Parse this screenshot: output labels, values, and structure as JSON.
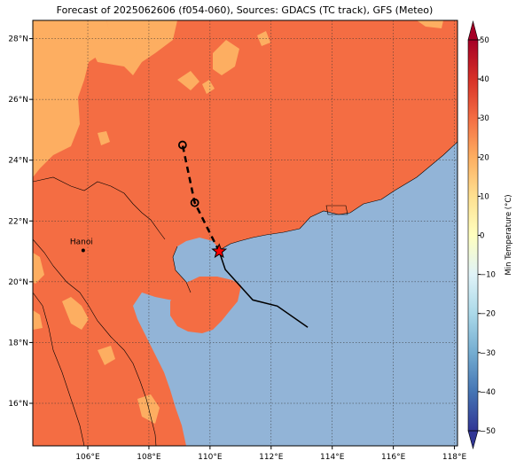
{
  "title": "Forecast of 2025062606 (f054-060), Sources: GDACS (TC track), GFS (Meteo)",
  "map": {
    "lon_range": [
      104.2,
      118.1
    ],
    "lat_range": [
      14.6,
      28.6
    ],
    "lon_ticks": [
      106,
      108,
      110,
      112,
      114,
      116,
      118
    ],
    "lon_tick_labels": [
      "106°E",
      "108°E",
      "110°E",
      "112°E",
      "114°E",
      "116°E",
      "118°E"
    ],
    "lat_ticks": [
      16,
      18,
      20,
      22,
      24,
      26,
      28
    ],
    "lat_tick_labels": [
      "16°N",
      "18°N",
      "20°N",
      "22°N",
      "24°N",
      "26°N",
      "28°N"
    ],
    "grid": true,
    "city": {
      "name": "Hanoi",
      "lon": 105.85,
      "lat": 21.03
    },
    "storm_current_position": {
      "lon": 110.3,
      "lat": 21.0
    },
    "track_past": [
      [
        113.2,
        18.5
      ],
      [
        112.2,
        19.2
      ],
      [
        111.4,
        19.4
      ],
      [
        110.5,
        20.4
      ],
      [
        110.3,
        21.0
      ]
    ],
    "track_forecast": [
      [
        110.3,
        21.0
      ],
      [
        109.5,
        22.6
      ],
      [
        109.1,
        24.5
      ]
    ],
    "forecast_points": [
      [
        109.5,
        22.6
      ],
      [
        109.1,
        24.5
      ]
    ],
    "colors": {
      "sea": "#92b4d7",
      "land_warm": "#f46d43",
      "land_mild": "#fdae61",
      "track": "#000000",
      "storm_marker": "#ff0000"
    }
  },
  "colorbar": {
    "label": "Min Temperature (°C)",
    "min": -50,
    "max": 50,
    "ticks": [
      -50,
      -40,
      -30,
      -20,
      -10,
      0,
      10,
      20,
      30,
      40,
      50
    ],
    "tick_labels": [
      "−50",
      "−40",
      "−30",
      "−20",
      "−10",
      "0",
      "10",
      "20",
      "30",
      "40",
      "50"
    ],
    "colors": [
      "#313695",
      "#4575b4",
      "#74add1",
      "#abd9e9",
      "#e0f3f8",
      "#ffffbf",
      "#fee090",
      "#fdae61",
      "#f46d43",
      "#d73027",
      "#a50026"
    ]
  }
}
